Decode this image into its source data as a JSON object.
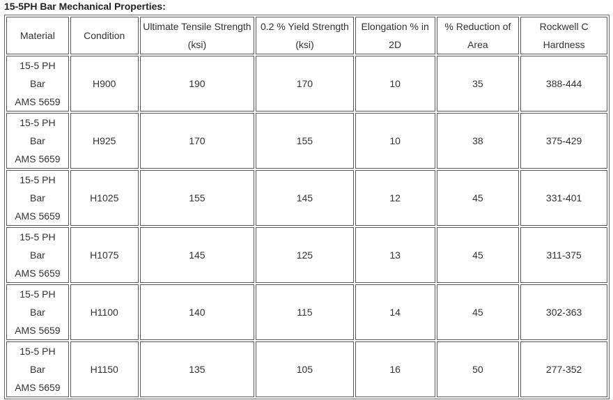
{
  "title": "15-5PH Bar Mechanical Properties:",
  "table": {
    "header": [
      "Material",
      "Condition",
      "Ultimate Tensile Strength (ksi)",
      "0.2 % Yield Strength (ksi)",
      "Elongation % in 2D",
      "% Reduction of Area",
      "Rockwell C Hardness"
    ],
    "rows": [
      [
        [
          "15-5 PH",
          "Bar",
          "AMS 5659"
        ],
        "H900",
        190,
        170,
        10,
        35,
        "388-444"
      ],
      [
        [
          "15-5 PH",
          "Bar",
          "AMS 5659"
        ],
        "H925",
        170,
        155,
        10,
        38,
        "375-429"
      ],
      [
        [
          "15-5 PH",
          "Bar",
          "AMS 5659"
        ],
        "H1025",
        155,
        145,
        12,
        45,
        "331-401"
      ],
      [
        [
          "15-5 PH",
          "Bar",
          "AMS 5659"
        ],
        "H1075",
        145,
        125,
        13,
        45,
        "311-375"
      ],
      [
        [
          "15-5 PH",
          "Bar",
          "AMS 5659"
        ],
        "H1100",
        140,
        115,
        14,
        45,
        "302-363"
      ],
      [
        [
          "15-5 PH",
          "Bar",
          "AMS 5659"
        ],
        "H1150",
        135,
        105,
        16,
        50,
        "277-352"
      ]
    ]
  }
}
